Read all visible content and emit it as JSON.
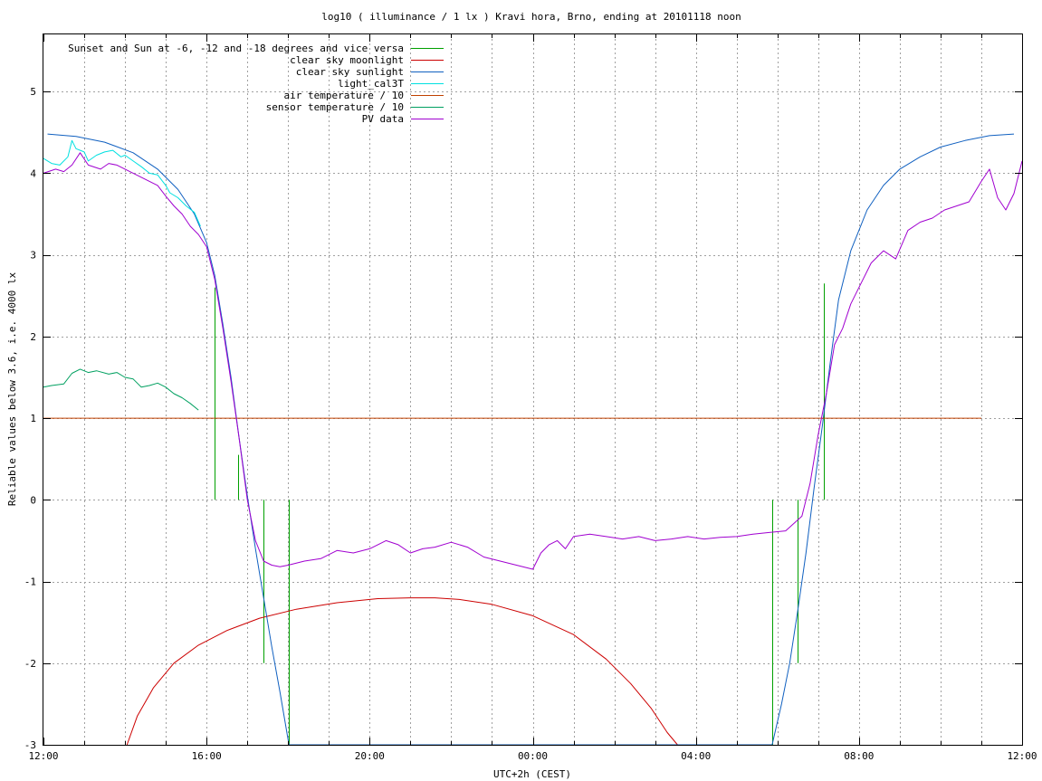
{
  "chart_data": {
    "type": "line",
    "title": "log10 ( illuminance / 1 lx ) Kravi hora, Brno, ending at 20101118 noon",
    "xlabel": "UTC+2h (CEST)",
    "ylabel": "Reliable values below 3.6, i.e. 4000 lx",
    "xlim": [
      0,
      24
    ],
    "ylim": [
      -3,
      5.7
    ],
    "grid": true,
    "legend_position": "top-left",
    "x_ticks": [
      {
        "x": 0,
        "label": "12:00"
      },
      {
        "x": 4,
        "label": "16:00"
      },
      {
        "x": 8,
        "label": "20:00"
      },
      {
        "x": 12,
        "label": "00:00"
      },
      {
        "x": 16,
        "label": "04:00"
      },
      {
        "x": 20,
        "label": "08:00"
      },
      {
        "x": 24,
        "label": "12:00"
      }
    ],
    "x_minor_ticks": [
      1,
      2,
      3,
      5,
      6,
      7,
      9,
      10,
      11,
      13,
      14,
      15,
      17,
      18,
      19,
      21,
      22,
      23
    ],
    "y_ticks": [
      {
        "y": -3,
        "label": "-3"
      },
      {
        "y": -2,
        "label": "-2"
      },
      {
        "y": -1,
        "label": "-1"
      },
      {
        "y": 0,
        "label": "0"
      },
      {
        "y": 1,
        "label": "1"
      },
      {
        "y": 2,
        "label": "2"
      },
      {
        "y": 3,
        "label": "3"
      },
      {
        "y": 4,
        "label": "4"
      },
      {
        "y": 5,
        "label": "5"
      }
    ],
    "series": [
      {
        "name": "Sunset and Sun at -6, -12 and -18 degrees and vice versa",
        "color": "#00a000",
        "style": "vlines",
        "lines": [
          {
            "x": 4.2,
            "y0": 0,
            "y1": 2.6
          },
          {
            "x": 4.77,
            "y0": 0,
            "y1": 0.55
          },
          {
            "x": 5.4,
            "y0": -2.0,
            "y1": 0
          },
          {
            "x": 6.02,
            "y0": -3,
            "y1": 0
          },
          {
            "x": 17.87,
            "y0": -3,
            "y1": 0
          },
          {
            "x": 18.5,
            "y0": -2.0,
            "y1": 0
          },
          {
            "x": 19.13,
            "y0": 0,
            "y1": 2.65
          }
        ]
      },
      {
        "name": "clear sky moonlight",
        "color": "#cc0000",
        "x": [
          2.05,
          2.3,
          2.7,
          3.2,
          3.8,
          4.5,
          5.3,
          6.2,
          7.2,
          8.2,
          9.0,
          9.6,
          10.2,
          11.0,
          12.0,
          13.0,
          13.8,
          14.4,
          14.9,
          15.3,
          15.55
        ],
        "y": [
          -3.0,
          -2.65,
          -2.3,
          -2.0,
          -1.78,
          -1.6,
          -1.45,
          -1.34,
          -1.26,
          -1.21,
          -1.2,
          -1.2,
          -1.22,
          -1.28,
          -1.42,
          -1.65,
          -1.95,
          -2.25,
          -2.55,
          -2.85,
          -3.0
        ]
      },
      {
        "name": "clear sky sunlight",
        "color": "#1060c0",
        "x": [
          0.1,
          0.8,
          1.5,
          2.2,
          2.8,
          3.3,
          3.7,
          4.0,
          4.2,
          4.4,
          4.6,
          4.8,
          5.0,
          5.2,
          5.4,
          5.6,
          5.8,
          6.02,
          17.87,
          18.1,
          18.3,
          18.5,
          18.7,
          18.9,
          19.1,
          19.3,
          19.5,
          19.8,
          20.2,
          20.6,
          21.0,
          21.5,
          22.0,
          22.6,
          23.2,
          23.8
        ],
        "y": [
          4.48,
          4.45,
          4.38,
          4.25,
          4.05,
          3.8,
          3.5,
          3.15,
          2.75,
          2.15,
          1.5,
          0.75,
          0.05,
          -0.6,
          -1.2,
          -1.8,
          -2.35,
          -3.0,
          -3.0,
          -2.5,
          -2.0,
          -1.35,
          -0.65,
          0.15,
          0.9,
          1.7,
          2.45,
          3.05,
          3.55,
          3.85,
          4.05,
          4.2,
          4.32,
          4.4,
          4.46,
          4.48
        ]
      },
      {
        "name": "light_cal3T",
        "color": "#00e0e0",
        "x": [
          0,
          0.2,
          0.4,
          0.6,
          0.7,
          0.8,
          1.0,
          1.1,
          1.3,
          1.5,
          1.7,
          1.9,
          2.0,
          2.2,
          2.4,
          2.6,
          2.8,
          3.0,
          3.1,
          3.3,
          3.5,
          3.7,
          3.85
        ],
        "y": [
          4.18,
          4.12,
          4.1,
          4.2,
          4.4,
          4.3,
          4.26,
          4.15,
          4.22,
          4.26,
          4.28,
          4.2,
          4.22,
          4.15,
          4.08,
          4.0,
          3.98,
          3.85,
          3.76,
          3.7,
          3.6,
          3.52,
          3.35
        ]
      },
      {
        "name": "air temperature / 10",
        "color": "#c04000",
        "x": [
          0,
          23.0
        ],
        "y": [
          1.0,
          1.0
        ]
      },
      {
        "name": "sensor temperature / 10",
        "color": "#00a060",
        "x": [
          0,
          0.2,
          0.5,
          0.7,
          0.9,
          1.1,
          1.3,
          1.6,
          1.8,
          2.0,
          2.2,
          2.4,
          2.6,
          2.8,
          3.0,
          3.2,
          3.4,
          3.6,
          3.8
        ],
        "y": [
          1.38,
          1.4,
          1.42,
          1.55,
          1.6,
          1.56,
          1.58,
          1.54,
          1.56,
          1.5,
          1.48,
          1.38,
          1.4,
          1.43,
          1.38,
          1.3,
          1.25,
          1.18,
          1.1
        ]
      },
      {
        "name": "PV data",
        "color": "#a000d0",
        "x": [
          0,
          0.3,
          0.5,
          0.7,
          0.9,
          1.1,
          1.4,
          1.6,
          1.8,
          2.0,
          2.2,
          2.4,
          2.6,
          2.8,
          3.0,
          3.2,
          3.4,
          3.6,
          3.8,
          4.0,
          4.2,
          4.4,
          4.6,
          4.8,
          5.0,
          5.2,
          5.4,
          5.6,
          5.8,
          6.0,
          6.4,
          6.8,
          7.2,
          7.6,
          8.0,
          8.4,
          8.7,
          9.0,
          9.3,
          9.6,
          10.0,
          10.4,
          10.8,
          11.2,
          11.6,
          12.0,
          12.2,
          12.4,
          12.6,
          12.8,
          13.0,
          13.4,
          13.8,
          14.2,
          14.6,
          15.0,
          15.4,
          15.8,
          16.2,
          16.6,
          17.0,
          17.4,
          17.8,
          18.2,
          18.6,
          18.8,
          19.0,
          19.2,
          19.4,
          19.6,
          19.8,
          20.0,
          20.3,
          20.6,
          20.9,
          21.2,
          21.5,
          21.8,
          22.1,
          22.4,
          22.7,
          23.0,
          23.2,
          23.4,
          23.6,
          23.8,
          24.0
        ],
        "y": [
          4.0,
          4.05,
          4.02,
          4.1,
          4.25,
          4.1,
          4.05,
          4.12,
          4.1,
          4.05,
          4.0,
          3.95,
          3.9,
          3.85,
          3.72,
          3.6,
          3.5,
          3.35,
          3.25,
          3.1,
          2.7,
          2.1,
          1.45,
          0.75,
          0.0,
          -0.5,
          -0.75,
          -0.8,
          -0.82,
          -0.8,
          -0.75,
          -0.72,
          -0.62,
          -0.65,
          -0.6,
          -0.5,
          -0.55,
          -0.65,
          -0.6,
          -0.58,
          -0.52,
          -0.58,
          -0.7,
          -0.75,
          -0.8,
          -0.85,
          -0.65,
          -0.55,
          -0.5,
          -0.6,
          -0.45,
          -0.42,
          -0.45,
          -0.48,
          -0.45,
          -0.5,
          -0.48,
          -0.45,
          -0.48,
          -0.46,
          -0.45,
          -0.42,
          -0.4,
          -0.38,
          -0.2,
          0.2,
          0.8,
          1.3,
          1.9,
          2.1,
          2.4,
          2.6,
          2.9,
          3.05,
          2.95,
          3.3,
          3.4,
          3.45,
          3.55,
          3.6,
          3.65,
          3.9,
          4.05,
          3.7,
          3.55,
          3.75,
          4.15
        ]
      }
    ]
  }
}
